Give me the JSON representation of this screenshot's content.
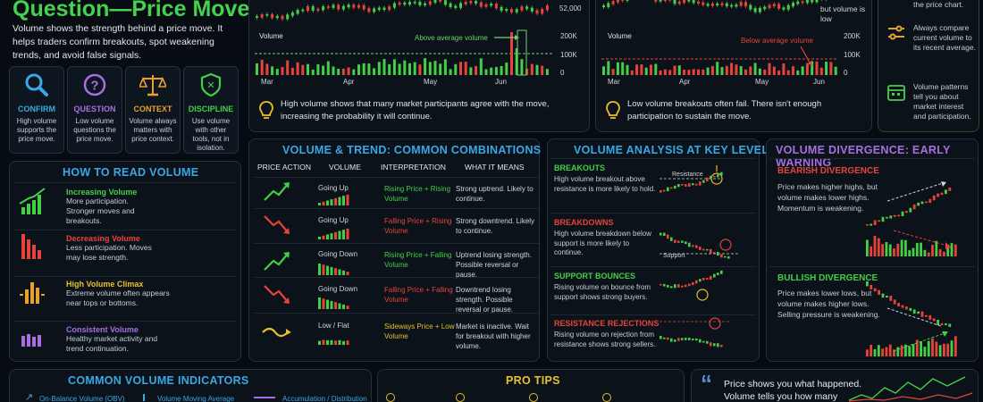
{
  "header": {
    "title": "Question—Price Moves",
    "intro": "Volume shows the strength behind a price move. It helps traders confirm breakouts, spot weakening trends, and avoid false signals."
  },
  "cards": [
    {
      "title": "CONFIRM",
      "desc": "High volume supports the price move.",
      "icon": "search-icon",
      "color": "#3aa7e6"
    },
    {
      "title": "QUESTION",
      "desc": "Low volume questions the price move.",
      "icon": "question-icon",
      "color": "#a86ee0"
    },
    {
      "title": "CONTEXT",
      "desc": "Volume always matters with price context.",
      "icon": "scales-icon",
      "color": "#e9a02b"
    },
    {
      "title": "DISCIPLINE",
      "desc": "Use volume with other tools, not in isolation.",
      "icon": "shield-icon",
      "color": "#45cf47"
    }
  ],
  "chart_left": {
    "price_tick": "52,000",
    "volume_label": "Volume",
    "volume_ticks": [
      "200K",
      "100K",
      "0"
    ],
    "months": [
      "Mar",
      "Apr",
      "May",
      "Jun"
    ],
    "annotation": "Above average volume",
    "note": "High volume shows that many market participants agree with the move, increasing the probability it will continue."
  },
  "chart_right": {
    "top_note": "but volume is low",
    "volume_label": "Volume",
    "volume_ticks": [
      "200K",
      "100K",
      "0"
    ],
    "months": [
      "Mar",
      "Apr",
      "May",
      "Jun"
    ],
    "annotation": "Below average volume",
    "note": "Low volume breakouts often fail. There isn't enough participation to sustain the move."
  },
  "sidebar": {
    "top_text": "the price chart.",
    "item1": "Always compare current volume to its recent average.",
    "item2": "Volume patterns tell you about market interest and participation."
  },
  "how_to_read": {
    "title": "HOW TO READ VOLUME",
    "items": [
      {
        "title": "Increasing Volume",
        "desc": "More participation. Stronger moves and breakouts."
      },
      {
        "title": "Decreasing Volume",
        "desc": "Less participation. Moves may lose strength."
      },
      {
        "title": "High Volume Climax",
        "desc": "Extreme volume often appears near tops or bottoms."
      },
      {
        "title": "Consistent Volume",
        "desc": "Healthy market activity and trend continuation."
      }
    ]
  },
  "combinations": {
    "title": "VOLUME & TREND: COMMON COMBINATIONS",
    "headers": [
      "PRICE ACTION",
      "VOLUME",
      "INTERPRETATION",
      "WHAT IT MEANS"
    ],
    "rows": [
      {
        "volume": "Going Up",
        "interp": "Rising Price + Rising Volume",
        "meaning": "Strong uptrend. Likely to continue."
      },
      {
        "volume": "Going Up",
        "interp": "Falling Price + Rising Volume",
        "meaning": "Strong downtrend. Likely to continue."
      },
      {
        "volume": "Going Down",
        "interp": "Rising Price + Falling Volume",
        "meaning": "Uptrend losing strength. Possible reversal or pause."
      },
      {
        "volume": "Going Down",
        "interp": "Falling Price + Falling Volume",
        "meaning": "Downtrend losing strength. Possible reversal or pause."
      },
      {
        "volume": "Low / Flat",
        "interp": "Sideways Price + Low Volume",
        "meaning": "Market is inactive. Wait for breakout with higher volume."
      }
    ]
  },
  "key_levels": {
    "title": "VOLUME ANALYSIS AT KEY LEVELS",
    "items": [
      {
        "title": "BREAKOUTS",
        "desc": "High volume breakout above resistance is more likely to hold.",
        "tag": "Resistance"
      },
      {
        "title": "BREAKDOWNS",
        "desc": "High volume breakdown below support is more likely to continue.",
        "tag": "Support"
      },
      {
        "title": "SUPPORT BOUNCES",
        "desc": "Rising volume on bounce from support shows strong buyers.",
        "tag": ""
      },
      {
        "title": "RESISTANCE REJECTIONS",
        "desc": "Rising volume on rejection from resistance shows strong sellers.",
        "tag": ""
      }
    ]
  },
  "divergence": {
    "title": "VOLUME DIVERGENCE: EARLY WARNING",
    "bearish_title": "BEARISH DIVERGENCE",
    "bearish_desc": "Price makes higher highs, but volume makes lower highs. Momentum is weakening.",
    "bullish_title": "BULLISH DIVERGENCE",
    "bullish_desc": "Price makes lower lows, but volume makes higher lows. Selling pressure is weakening."
  },
  "indicators": {
    "title": "COMMON VOLUME INDICATORS",
    "items": [
      "On-Balance Volume (OBV)",
      "Volume Moving Average",
      "Accumulation / Distribution"
    ]
  },
  "pro_tips": {
    "title": "PRO TIPS"
  },
  "quote": {
    "line1": "Price shows you what happened.",
    "line2": "Volume tells you how many"
  }
}
